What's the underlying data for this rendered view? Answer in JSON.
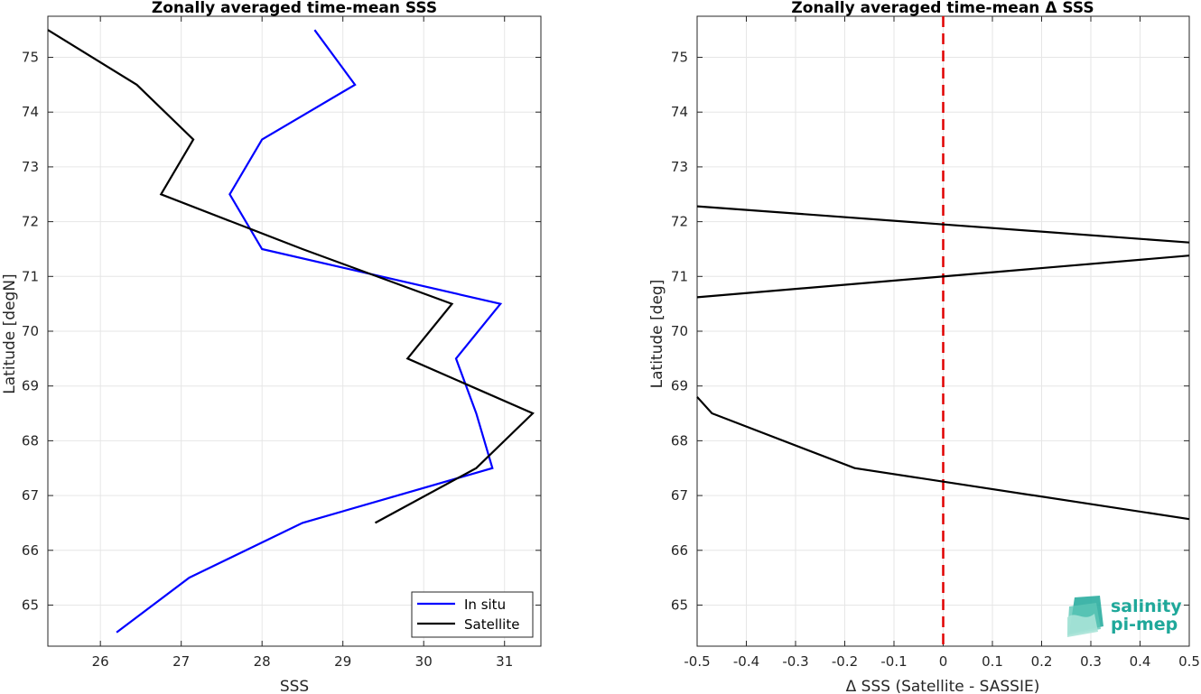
{
  "chart_data": [
    {
      "type": "line",
      "title": "Zonally averaged time-mean SSS",
      "xlabel": "SSS",
      "ylabel": "Latitude [degN]",
      "xlim": [
        25.35,
        31.45
      ],
      "ylim": [
        64.25,
        75.75
      ],
      "xticks": [
        "26",
        "27",
        "28",
        "29",
        "30",
        "31"
      ],
      "xtick_values": [
        26,
        27,
        28,
        29,
        30,
        31
      ],
      "yticks": [
        "65",
        "66",
        "67",
        "68",
        "69",
        "70",
        "71",
        "72",
        "73",
        "74",
        "75"
      ],
      "ytick_values": [
        65,
        66,
        67,
        68,
        69,
        70,
        71,
        72,
        73,
        74,
        75
      ],
      "grid": true,
      "legend": "bottom-right",
      "series": [
        {
          "name": "In situ",
          "color": "#0000ff",
          "x": [
            26.2,
            27.1,
            28.5,
            30.85,
            30.65,
            30.4,
            30.95,
            28.0,
            27.6,
            28.0,
            29.15,
            28.65
          ],
          "y": [
            64.5,
            65.5,
            66.5,
            67.5,
            68.5,
            69.5,
            70.5,
            71.5,
            72.5,
            73.5,
            74.5,
            75.5
          ]
        },
        {
          "name": "Satellite",
          "color": "#000000",
          "x": [
            29.4,
            30.65,
            31.35,
            29.8,
            30.35,
            28.5,
            26.75,
            27.15,
            26.45,
            25.35
          ],
          "y": [
            66.5,
            67.5,
            68.5,
            69.5,
            70.5,
            71.5,
            72.5,
            73.5,
            74.5,
            75.5
          ]
        }
      ]
    },
    {
      "type": "line",
      "title": "Zonally averaged time-mean Δ SSS",
      "xlabel": "Δ SSS (Satellite - SASSIE)",
      "ylabel": "Latitude [deg]",
      "xlim": [
        -0.5,
        0.5
      ],
      "ylim": [
        64.25,
        75.75
      ],
      "xticks": [
        "-0.5",
        "-0.4",
        "-0.3",
        "-0.2",
        "-0.1",
        "0",
        "0.1",
        "0.2",
        "0.3",
        "0.4",
        "0.5"
      ],
      "xtick_values": [
        -0.5,
        -0.4,
        -0.3,
        -0.2,
        -0.1,
        0,
        0.1,
        0.2,
        0.3,
        0.4,
        0.5
      ],
      "yticks": [
        "65",
        "66",
        "67",
        "68",
        "69",
        "70",
        "71",
        "72",
        "73",
        "74",
        "75"
      ],
      "ytick_values": [
        65,
        66,
        67,
        68,
        69,
        70,
        71,
        72,
        73,
        74,
        75
      ],
      "grid": true,
      "reference_line": {
        "x": 0,
        "color": "#e00000",
        "style": "dashed"
      },
      "series": [
        {
          "color": "#000000",
          "x": [
            0.5,
            -0.18,
            -0.47,
            -0.5
          ],
          "y": [
            66.57,
            67.5,
            68.5,
            68.8
          ]
        },
        {
          "color": "#000000",
          "x": [
            -0.5,
            0.5
          ],
          "y": [
            70.62,
            71.38
          ]
        },
        {
          "color": "#000000",
          "x": [
            0.5,
            -0.5
          ],
          "y": [
            71.62,
            72.28
          ]
        }
      ]
    }
  ],
  "logo": {
    "line1": "salinity",
    "line2": "pi-mep",
    "color": "#1fa89a"
  }
}
